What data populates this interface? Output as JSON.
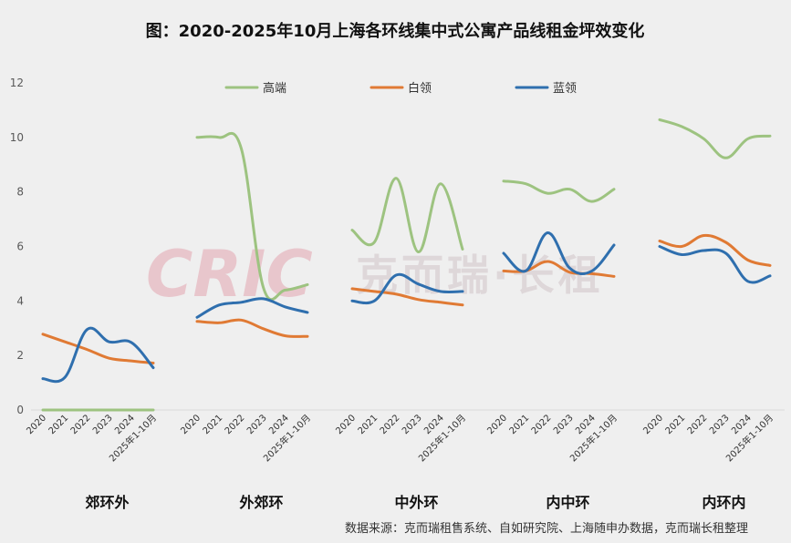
{
  "chart_data": {
    "type": "line",
    "title": "图：2020-2025年10月上海各环线集中式公寓产品线租金坪效变化",
    "ylim": [
      0,
      12
    ],
    "yticks": [
      0,
      2,
      4,
      6,
      8,
      10,
      12
    ],
    "grid": false,
    "legend_position": "top",
    "categories": [
      "2020",
      "2021",
      "2022",
      "2023",
      "2024",
      "2025年1-10月"
    ],
    "groups": [
      {
        "name": "郊环外",
        "series": [
          {
            "name": "高端",
            "values": [
              0,
              0,
              0,
              0,
              0,
              0
            ]
          },
          {
            "name": "白领",
            "values": [
              2.78,
              2.5,
              2.22,
              1.9,
              1.8,
              1.72
            ]
          },
          {
            "name": "蓝领",
            "values": [
              1.15,
              1.2,
              2.95,
              2.5,
              2.48,
              1.55
            ]
          }
        ]
      },
      {
        "name": "外郊环",
        "series": [
          {
            "name": "高端",
            "values": [
              10.0,
              10.0,
              9.6,
              4.5,
              4.4,
              4.6
            ]
          },
          {
            "name": "白领",
            "values": [
              3.25,
              3.2,
              3.3,
              2.98,
              2.72,
              2.7
            ]
          },
          {
            "name": "蓝领",
            "values": [
              3.4,
              3.85,
              3.95,
              4.08,
              3.78,
              3.58
            ]
          }
        ]
      },
      {
        "name": "中外环",
        "series": [
          {
            "name": "高端",
            "values": [
              6.6,
              6.15,
              8.5,
              5.8,
              8.3,
              5.9
            ]
          },
          {
            "name": "白领",
            "values": [
              4.45,
              4.35,
              4.25,
              4.05,
              3.95,
              3.85
            ]
          },
          {
            "name": "蓝领",
            "values": [
              4.0,
              4.0,
              4.95,
              4.62,
              4.35,
              4.35
            ]
          }
        ]
      },
      {
        "name": "内中环",
        "series": [
          {
            "name": "高端",
            "values": [
              8.4,
              8.3,
              7.95,
              8.1,
              7.65,
              8.1
            ]
          },
          {
            "name": "白领",
            "values": [
              5.1,
              5.1,
              5.45,
              5.05,
              5.0,
              4.9
            ]
          },
          {
            "name": "蓝领",
            "values": [
              5.75,
              5.1,
              6.5,
              5.2,
              5.1,
              6.05
            ]
          }
        ]
      },
      {
        "name": "内环内",
        "series": [
          {
            "name": "高端",
            "values": [
              10.65,
              10.4,
              9.95,
              9.25,
              9.95,
              10.05
            ]
          },
          {
            "name": "白领",
            "values": [
              6.2,
              6.0,
              6.4,
              6.15,
              5.5,
              5.3
            ]
          },
          {
            "name": "蓝领",
            "values": [
              6.0,
              5.7,
              5.85,
              5.75,
              4.72,
              4.92
            ]
          }
        ]
      }
    ],
    "legend": [
      "高端",
      "白领",
      "蓝领"
    ],
    "colors": {
      "高端": "#9dc380",
      "白领": "#e07a34",
      "蓝领": "#2f6fae"
    }
  },
  "source": "数据来源：克而瑞租售系统、自如研究院、上海随申办数据，克而瑞长租整理",
  "watermark": {
    "logo": "CRIC",
    "text": "克而瑞·长租"
  }
}
